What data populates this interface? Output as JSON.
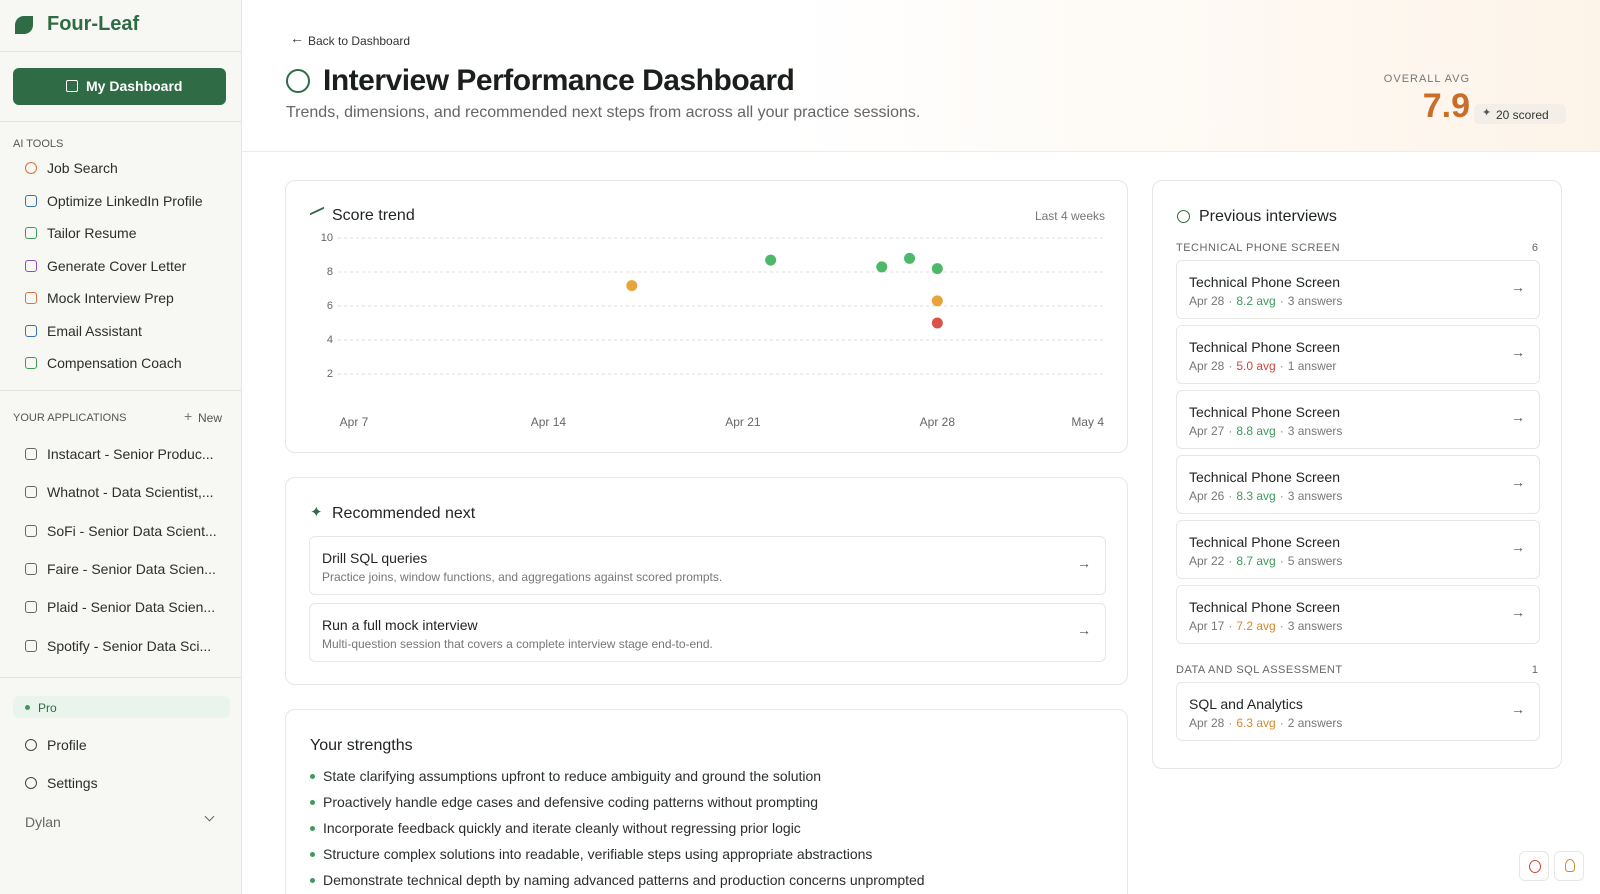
{
  "sidebar": {
    "brand": "Four-Leaf",
    "dashboard_button": "My Dashboard",
    "ai_tools_heading": "AI TOOLS",
    "ai_tools": [
      "Job Search",
      "Optimize LinkedIn Profile",
      "Tailor Resume",
      "Generate Cover Letter",
      "Mock Interview Prep",
      "Email Assistant",
      "Compensation Coach"
    ],
    "applications_heading": "YOUR APPLICATIONS",
    "new_button": "New",
    "applications": [
      "Instacart - Senior Produc...",
      "Whatnot - Data Scientist,...",
      "SoFi - Senior Data Scient...",
      "Faire - Senior Data Scien...",
      "Plaid - Senior Data Scien...",
      "Spotify - Senior Data Sci..."
    ],
    "plan": "Pro",
    "profile": "Profile",
    "settings": "Settings",
    "user": "Dylan"
  },
  "header": {
    "back": "Back to Dashboard",
    "title": "Interview Performance Dashboard",
    "subtitle": "Trends, dimensions, and recommended next steps from across all your practice sessions.",
    "overall_label": "OVERALL AVG",
    "overall_value": "7.9",
    "scored": "20 scored"
  },
  "chart_data": {
    "type": "scatter",
    "title": "Score trend",
    "subtitle": "Last 4 weeks",
    "x": [
      "Apr 17",
      "Apr 22",
      "Apr 26",
      "Apr 27",
      "Apr 28",
      "Apr 28",
      "Apr 28"
    ],
    "values": [
      7.2,
      8.7,
      8.3,
      8.8,
      8.2,
      6.3,
      5.0
    ],
    "colors": [
      "#e8a33a",
      "#4cb96a",
      "#4cb96a",
      "#4cb96a",
      "#4cb96a",
      "#e8a33a",
      "#d9534a"
    ],
    "xlim": [
      "Apr 7",
      "May 4"
    ],
    "xticks": [
      "Apr 7",
      "Apr 14",
      "Apr 21",
      "Apr 28",
      "May 4"
    ],
    "ylim": [
      0,
      10
    ],
    "yticks": [
      2,
      4,
      6,
      8,
      10
    ],
    "grid": true
  },
  "recommended": {
    "heading": "Recommended next",
    "items": [
      {
        "title": "Drill SQL queries",
        "description": "Practice joins, window functions, and aggregations against scored prompts."
      },
      {
        "title": "Run a full mock interview",
        "description": "Multi-question session that covers a complete interview stage end-to-end."
      }
    ]
  },
  "strengths": {
    "heading": "Your strengths",
    "items": [
      "State clarifying assumptions upfront to reduce ambiguity and ground the solution",
      "Proactively handle edge cases and defensive coding patterns without prompting",
      "Incorporate feedback quickly and iterate cleanly without regressing prior logic",
      "Structure complex solutions into readable, verifiable steps using appropriate abstractions",
      "Demonstrate technical depth by naming advanced patterns and production concerns unprompted"
    ]
  },
  "previous": {
    "heading": "Previous interviews",
    "groups": [
      {
        "name": "TECHNICAL PHONE SCREEN",
        "count": "6",
        "items": [
          {
            "title": "Technical Phone Screen",
            "date": "Apr 28",
            "avg": "8.2 avg",
            "avg_color": "#3f9a5a",
            "answers": "3 answers"
          },
          {
            "title": "Technical Phone Screen",
            "date": "Apr 28",
            "avg": "5.0 avg",
            "avg_color": "#d0463c",
            "answers": "1 answer"
          },
          {
            "title": "Technical Phone Screen",
            "date": "Apr 27",
            "avg": "8.8 avg",
            "avg_color": "#3f9a5a",
            "answers": "3 answers"
          },
          {
            "title": "Technical Phone Screen",
            "date": "Apr 26",
            "avg": "8.3 avg",
            "avg_color": "#3f9a5a",
            "answers": "3 answers"
          },
          {
            "title": "Technical Phone Screen",
            "date": "Apr 22",
            "avg": "8.7 avg",
            "avg_color": "#3f9a5a",
            "answers": "5 answers"
          },
          {
            "title": "Technical Phone Screen",
            "date": "Apr 17",
            "avg": "7.2 avg",
            "avg_color": "#d08a2e",
            "answers": "3 answers"
          }
        ]
      },
      {
        "name": "DATA AND SQL ASSESSMENT",
        "count": "1",
        "items": [
          {
            "title": "SQL and Analytics",
            "date": "Apr 28",
            "avg": "6.3 avg",
            "avg_color": "#d08a2e",
            "answers": "2 answers"
          }
        ]
      }
    ]
  }
}
